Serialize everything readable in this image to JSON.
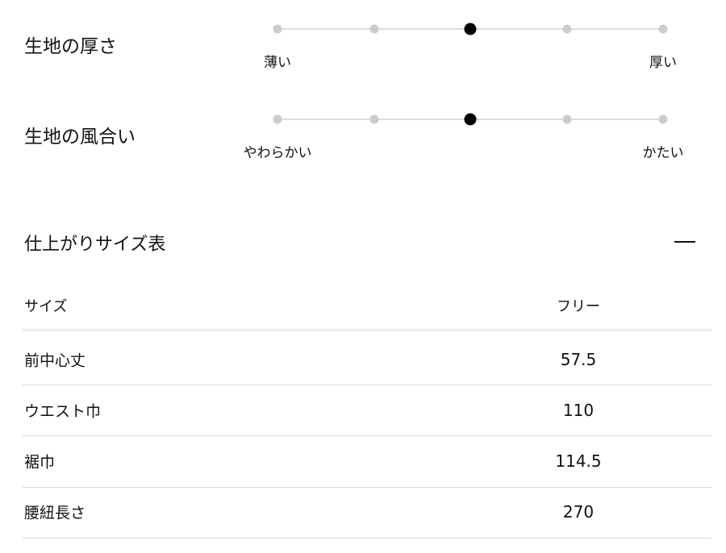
{
  "scales": [
    {
      "title": "生地の厚さ",
      "min_label": "薄い",
      "max_label": "厚い",
      "steps": 5,
      "selected": 3
    },
    {
      "title": "生地の風合い",
      "min_label": "やわらかい",
      "max_label": "かたい",
      "steps": 5,
      "selected": 3
    }
  ],
  "size_table": {
    "title": "仕上がりサイズ表",
    "collapse_icon": "minus-icon",
    "header": {
      "label": "サイズ",
      "value": "フリー"
    },
    "rows": [
      {
        "label": "前中心丈",
        "value": "57.5"
      },
      {
        "label": "ウエスト巾",
        "value": "110"
      },
      {
        "label": "裾巾",
        "value": "114.5"
      },
      {
        "label": "腰紐長さ",
        "value": "270"
      }
    ]
  }
}
